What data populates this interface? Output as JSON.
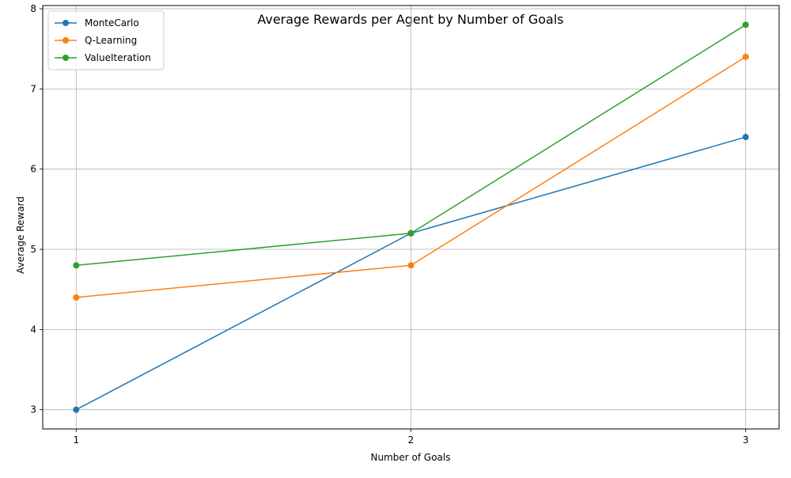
{
  "chart_data": {
    "type": "line",
    "title": "Average Rewards per Agent by Number of Goals",
    "xlabel": "Number of Goals",
    "ylabel": "Average Reward",
    "x": [
      1,
      2,
      3
    ],
    "x_tick_labels": [
      "1",
      "2",
      "3"
    ],
    "y_ticks": [
      3,
      4,
      5,
      6,
      7,
      8
    ],
    "y_tick_labels": [
      "3",
      "4",
      "5",
      "6",
      "7",
      "8"
    ],
    "xlim": [
      0.9,
      3.1
    ],
    "ylim": [
      2.76,
      8.04
    ],
    "grid": true,
    "legend_position": "top-left",
    "series": [
      {
        "name": "MonteCarlo",
        "color": "#1f77b4",
        "values": [
          3.0,
          5.2,
          6.4
        ]
      },
      {
        "name": "Q-Learning",
        "color": "#ff7f0e",
        "values": [
          4.4,
          4.8,
          7.4
        ]
      },
      {
        "name": "ValueIteration",
        "color": "#2ca02c",
        "values": [
          4.8,
          5.2,
          7.8
        ]
      }
    ]
  }
}
